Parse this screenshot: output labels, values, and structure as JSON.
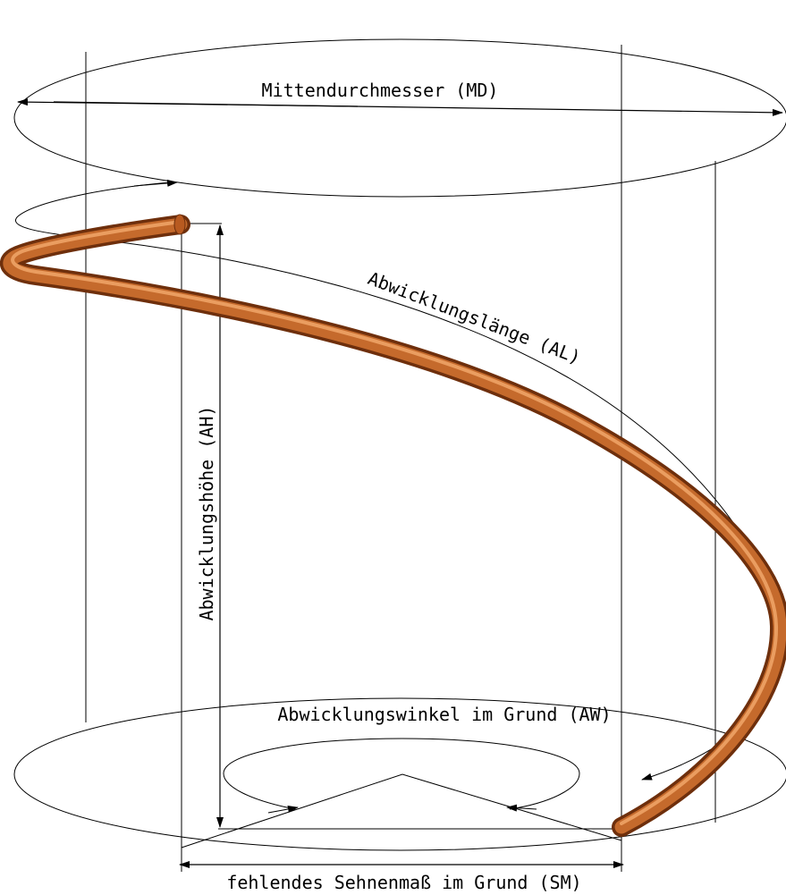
{
  "labels": {
    "md": "Mittendurchmesser (MD)",
    "al": "Abwicklungslänge (AL)",
    "ah": "Abwicklungshöhe (AH)",
    "aw": "Abwicklungswinkel im Grund (AW)",
    "sm": "fehlendes Sehnenmaß im Grund (SM)"
  },
  "colors": {
    "tube_dark": "#6e2f0c",
    "tube_mid": "#c56a2c",
    "tube_light": "#f0a66a",
    "line": "#000000",
    "background": "#ffffff"
  }
}
